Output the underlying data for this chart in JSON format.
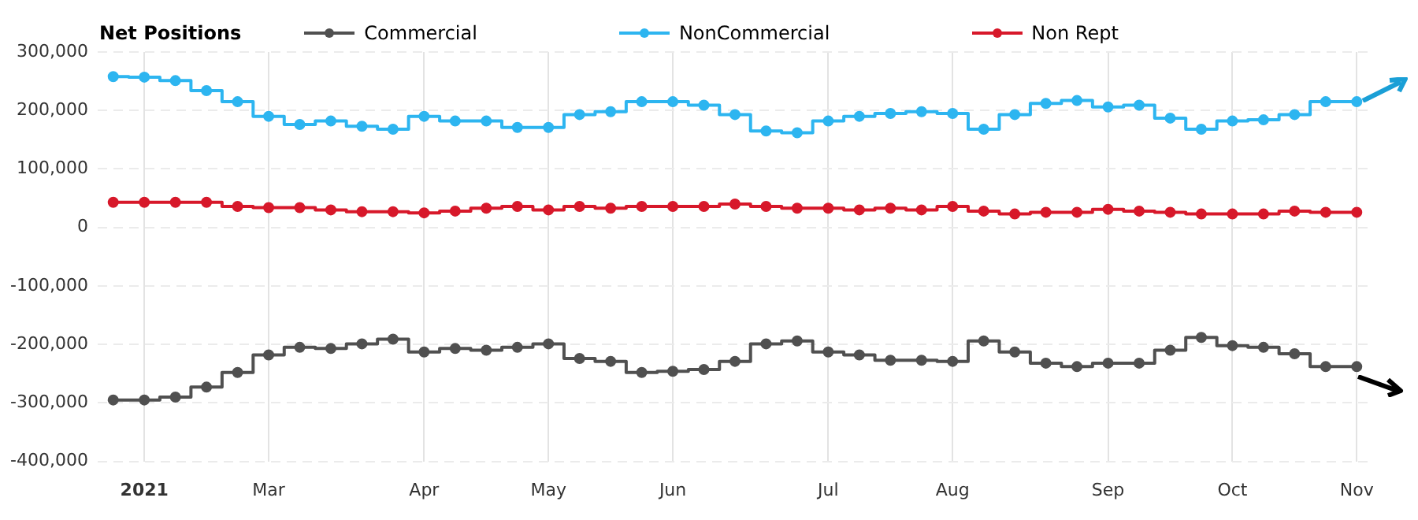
{
  "chart_data": {
    "type": "step",
    "legend_title": "Net Positions",
    "legend": "top",
    "grid": true,
    "marker": "circle",
    "categories": [
      null,
      "2021",
      null,
      null,
      null,
      "Mar",
      null,
      null,
      null,
      null,
      "Apr",
      null,
      null,
      null,
      "May",
      null,
      null,
      null,
      "Jun",
      null,
      null,
      null,
      null,
      "Jul",
      null,
      null,
      null,
      "Aug",
      null,
      null,
      null,
      null,
      "Sep",
      null,
      null,
      null,
      "Oct",
      null,
      null,
      null,
      "Nov"
    ],
    "ylim": [
      -400000,
      300000
    ],
    "yticks": [
      {
        "value": -400000,
        "label": "-400,000"
      },
      {
        "value": -300000,
        "label": "-300,000"
      },
      {
        "value": -200000,
        "label": "-200,000"
      },
      {
        "value": -100000,
        "label": "-100,000"
      },
      0,
      {
        "value": 100000,
        "label": "100,000"
      },
      {
        "value": 200000,
        "label": "200,000"
      },
      {
        "value": 300000,
        "label": "300,000"
      }
    ],
    "series": [
      {
        "name": "Commercial",
        "color": "#505050",
        "values": [
          -295000,
          -295000,
          -290000,
          -273000,
          -248000,
          -218000,
          -205000,
          -207000,
          -199000,
          -191000,
          -213000,
          -207000,
          -210000,
          -205000,
          -199000,
          -224000,
          -229000,
          -248000,
          -246000,
          -243000,
          -229000,
          -199000,
          -194000,
          -213000,
          -218000,
          -227000,
          -227000,
          -229000,
          -194000,
          -213000,
          -232000,
          -238000,
          -232000,
          -232000,
          -210000,
          -188000,
          -202000,
          -205000,
          -216000,
          -238000,
          -238000
        ]
      },
      {
        "name": "NonCommercial",
        "color": "#2db5f0",
        "values": [
          258000,
          257000,
          251000,
          234000,
          215000,
          190000,
          176000,
          182000,
          173000,
          168000,
          190000,
          182000,
          182000,
          171000,
          171000,
          193000,
          198000,
          215000,
          215000,
          209000,
          193000,
          165000,
          162000,
          182000,
          190000,
          195000,
          198000,
          195000,
          168000,
          193000,
          212000,
          217000,
          206000,
          209000,
          187000,
          168000,
          182000,
          184000,
          193000,
          215000,
          215000
        ]
      },
      {
        "name": "Non Rept",
        "color": "#d7182a",
        "values": [
          43000,
          43000,
          43000,
          43000,
          36000,
          34000,
          34000,
          30000,
          27000,
          27000,
          25000,
          28000,
          33000,
          36000,
          30000,
          36000,
          33000,
          36000,
          36000,
          36000,
          40000,
          36000,
          33000,
          33000,
          30000,
          33000,
          30000,
          36000,
          28000,
          23000,
          26000,
          26000,
          31000,
          28000,
          26000,
          23000,
          23000,
          23000,
          28000,
          26000,
          26000
        ]
      }
    ]
  }
}
